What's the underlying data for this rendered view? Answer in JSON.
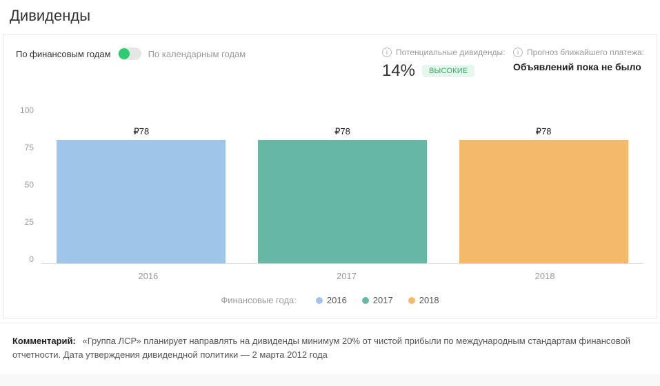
{
  "title": "Дивиденды",
  "mode": {
    "active_label": "По финансовым годам",
    "inactive_label": "По календарным годам"
  },
  "potential": {
    "header": "Потенциальные дивиденды:",
    "percent": "14%",
    "badge": "высокие",
    "badge_bg": "#e6f7ed",
    "badge_color": "#2eae60"
  },
  "forecast": {
    "header": "Прогноз ближайшего платежа:",
    "text": "Объявлений пока не было"
  },
  "chart": {
    "type": "bar",
    "ymin": 0,
    "ymax": 100,
    "ytick_step": 25,
    "yticks": [
      "100",
      "75",
      "50",
      "25",
      "0"
    ],
    "value_prefix": "₽",
    "categories": [
      "2016",
      "2017",
      "2018"
    ],
    "values": [
      78,
      78,
      78
    ],
    "bar_colors": [
      "#9fc5e8",
      "#66b8a5",
      "#f4b96a"
    ],
    "axis_color": "#9a9a9a",
    "baseline_color": "#dddddd",
    "bar_width_pct": 28,
    "label_fontsize": 13,
    "tick_fontsize": 12,
    "background_color": "#ffffff"
  },
  "legend": {
    "title": "Финансовые года:",
    "items": [
      {
        "label": "2016",
        "color": "#9fc5e8"
      },
      {
        "label": "2017",
        "color": "#66b8a5"
      },
      {
        "label": "2018",
        "color": "#f4b96a"
      }
    ]
  },
  "comment": {
    "label": "Комментарий:",
    "text": "«Группа ЛСР» планирует направлять на дивиденды минимум 20% от чистой прибыли по международным стандартам финансовой отчетности. Дата утверждения дивидендной политики — 2 марта 2012 года"
  }
}
